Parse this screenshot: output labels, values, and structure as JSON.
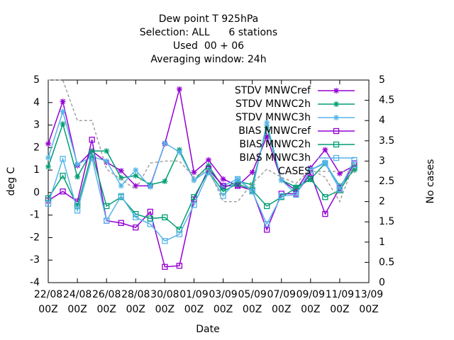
{
  "chart_data": {
    "type": "line",
    "title": [
      "Dew point T 925hPa",
      "Selection: ALL      6 stations",
      "Used  00 + 06",
      "Averaging window: 24h"
    ],
    "x_label": "Date",
    "y_label": "deg C",
    "y2_label": "No cases",
    "x": [
      0,
      1,
      2,
      3,
      4,
      5,
      6,
      7,
      8,
      9,
      10,
      11,
      12,
      13,
      14,
      15,
      16,
      17,
      18,
      19,
      20,
      21
    ],
    "xlim": [
      0,
      22
    ],
    "xticks": [
      {
        "value": 0,
        "label": [
          "22/08",
          "00Z"
        ]
      },
      {
        "value": 2,
        "label": [
          "24/08",
          "00Z"
        ]
      },
      {
        "value": 4,
        "label": [
          "26/08",
          "00Z"
        ]
      },
      {
        "value": 6,
        "label": [
          "28/08",
          "00Z"
        ]
      },
      {
        "value": 8,
        "label": [
          "30/08",
          "00Z"
        ]
      },
      {
        "value": 10,
        "label": [
          "01/09",
          "00Z"
        ]
      },
      {
        "value": 12,
        "label": [
          "03/09",
          "00Z"
        ]
      },
      {
        "value": 14,
        "label": [
          "05/09",
          "00Z"
        ]
      },
      {
        "value": 16,
        "label": [
          "07/09",
          "00Z"
        ]
      },
      {
        "value": 18,
        "label": [
          "09/09",
          "00Z"
        ]
      },
      {
        "value": 20,
        "label": [
          "11/09",
          "00Z"
        ]
      },
      {
        "value": 22,
        "label": [
          "13/09",
          "00Z"
        ]
      }
    ],
    "ylim": [
      -4,
      5
    ],
    "yticks": [
      -4,
      -3,
      -2,
      -1,
      0,
      1,
      2,
      3,
      4,
      5
    ],
    "y2lim": [
      0,
      5
    ],
    "y2ticks": [
      0,
      0.5,
      1,
      1.5,
      2,
      2.5,
      3,
      3.5,
      4,
      4.5,
      5
    ],
    "legend": "upper right",
    "series": [
      {
        "name": "STDV MNWCref",
        "color": "#9400d3",
        "marker": "star",
        "values": [
          2.17,
          4.05,
          1.2,
          1.85,
          1.35,
          0.97,
          0.3,
          0.3,
          2.17,
          4.6,
          0.9,
          1.45,
          0.6,
          0.3,
          0.9,
          2.5,
          0.55,
          0.1,
          1.1,
          1.9,
          0.85,
          1.2
        ]
      },
      {
        "name": "STDV MNWC2h",
        "color": "#009e73",
        "marker": "star",
        "values": [
          1.15,
          3.05,
          0.7,
          1.85,
          1.85,
          0.65,
          0.75,
          0.35,
          0.5,
          1.9,
          0.55,
          1.2,
          0.2,
          0.5,
          0.35,
          2.9,
          0.55,
          0.25,
          0.6,
          1.3,
          0.3,
          1.0
        ]
      },
      {
        "name": "STDV MNWC3h",
        "color": "#56b4e9",
        "marker": "star",
        "values": [
          1.55,
          3.6,
          1.25,
          1.6,
          1.4,
          0.3,
          1.0,
          0.25,
          2.2,
          1.8,
          0.55,
          1.0,
          0.3,
          0.6,
          0.1,
          3.1,
          0.55,
          -0.05,
          1.0,
          1.35,
          0.25,
          1.2
        ]
      },
      {
        "name": "BIAS MNWCref",
        "color": "#9400d3",
        "marker": "square",
        "values": [
          -0.35,
          0.05,
          -0.4,
          2.35,
          -1.25,
          -1.35,
          -1.55,
          -0.85,
          -3.3,
          -3.25,
          -0.3,
          1.05,
          0.3,
          0.3,
          0.1,
          -1.65,
          -0.05,
          -0.05,
          0.85,
          -0.95,
          0.2,
          1.3
        ]
      },
      {
        "name": "BIAS MNWC2h",
        "color": "#009e73",
        "marker": "square",
        "values": [
          -0.25,
          0.75,
          -0.6,
          1.75,
          -0.6,
          -0.2,
          -0.95,
          -1.15,
          -1.1,
          -1.65,
          -0.2,
          0.95,
          0.05,
          0.4,
          0.1,
          -0.6,
          -0.2,
          0.2,
          0.6,
          -0.2,
          0.1,
          1.1
        ]
      },
      {
        "name": "BIAS MNWC3h",
        "color": "#56b4e9",
        "marker": "square",
        "values": [
          -0.5,
          1.5,
          -0.8,
          1.55,
          -1.25,
          -0.15,
          -1.1,
          -1.4,
          -2.15,
          -1.85,
          -0.55,
          0.9,
          -0.15,
          0.6,
          0.05,
          -1.4,
          -0.15,
          -0.1,
          1.0,
          1.3,
          0.15,
          1.45
        ]
      },
      {
        "name": "CASES",
        "color": "#a0a0a0",
        "marker": "none",
        "dashed": true,
        "axis": "y2",
        "values": [
          5,
          5,
          4.0,
          4.0,
          2.8,
          2.55,
          2.3,
          2.95,
          3.0,
          3.0,
          2.6,
          2.8,
          2.0,
          2.0,
          2.45,
          2.8,
          2.6,
          2.45,
          2.8,
          2.6,
          2.0,
          2.95
        ]
      }
    ]
  }
}
